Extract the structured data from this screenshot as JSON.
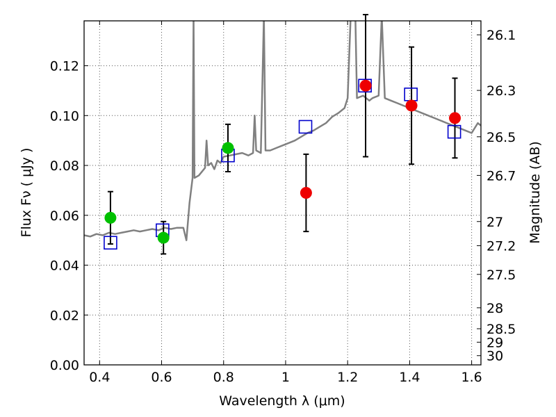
{
  "chart_data": {
    "type": "scatter",
    "title": "",
    "xlabel": "Wavelength  λ (μm)",
    "ylabel": "Flux  Fν  ( μJy )",
    "y2label": "Magnitude (AB)",
    "xlim": [
      0.35,
      1.63
    ],
    "ylim": [
      0.0,
      0.138
    ],
    "grid": true,
    "legend": "none",
    "x_ticks": [
      {
        "value": 0.4,
        "label": "0.4"
      },
      {
        "value": 0.6,
        "label": "0.6"
      },
      {
        "value": 0.8,
        "label": "0.8"
      },
      {
        "value": 1.0,
        "label": "1"
      },
      {
        "value": 1.2,
        "label": "1.2"
      },
      {
        "value": 1.4,
        "label": "1.4"
      },
      {
        "value": 1.6,
        "label": "1.6"
      }
    ],
    "y_ticks": [
      {
        "value": 0.0,
        "label": "0.00"
      },
      {
        "value": 0.02,
        "label": "0.02"
      },
      {
        "value": 0.04,
        "label": "0.04"
      },
      {
        "value": 0.06,
        "label": "0.06"
      },
      {
        "value": 0.08,
        "label": "0.08"
      },
      {
        "value": 0.1,
        "label": "0.10"
      },
      {
        "value": 0.12,
        "label": "0.12"
      }
    ],
    "y2_ticks": [
      {
        "flux": 0.1324,
        "label": "26.1"
      },
      {
        "flux": 0.1101,
        "label": "26.3"
      },
      {
        "flux": 0.0915,
        "label": "26.5"
      },
      {
        "flux": 0.076,
        "label": "26.7"
      },
      {
        "flux": 0.0575,
        "label": "27"
      },
      {
        "flux": 0.0478,
        "label": "27.2"
      },
      {
        "flux": 0.0363,
        "label": "27.5"
      },
      {
        "flux": 0.0229,
        "label": "28"
      },
      {
        "flux": 0.0145,
        "label": "28.5"
      },
      {
        "flux": 0.0091,
        "label": "29"
      },
      {
        "flux": 0.0037,
        "label": "30"
      }
    ],
    "colors": {
      "spectrum": "#808080",
      "model_photometry": "#0000cc",
      "observed_green": "#00c000",
      "observed_red": "#ee0000",
      "errorbar": "#000000",
      "grid": "#555555"
    },
    "spectrum": [
      [
        0.35,
        0.052
      ],
      [
        0.37,
        0.0515
      ],
      [
        0.39,
        0.0525
      ],
      [
        0.41,
        0.052
      ],
      [
        0.43,
        0.053
      ],
      [
        0.45,
        0.0525
      ],
      [
        0.47,
        0.053
      ],
      [
        0.49,
        0.0535
      ],
      [
        0.51,
        0.054
      ],
      [
        0.53,
        0.0535
      ],
      [
        0.55,
        0.054
      ],
      [
        0.57,
        0.0545
      ],
      [
        0.59,
        0.054
      ],
      [
        0.61,
        0.055
      ],
      [
        0.63,
        0.0545
      ],
      [
        0.65,
        0.055
      ],
      [
        0.67,
        0.055
      ],
      [
        0.68,
        0.05
      ],
      [
        0.69,
        0.065
      ],
      [
        0.7,
        0.075
      ],
      [
        0.703,
        0.14
      ],
      [
        0.706,
        0.075
      ],
      [
        0.72,
        0.076
      ],
      [
        0.74,
        0.079
      ],
      [
        0.745,
        0.09
      ],
      [
        0.75,
        0.08
      ],
      [
        0.76,
        0.081
      ],
      [
        0.77,
        0.0785
      ],
      [
        0.78,
        0.082
      ],
      [
        0.79,
        0.081
      ],
      [
        0.8,
        0.0835
      ],
      [
        0.82,
        0.084
      ],
      [
        0.84,
        0.0845
      ],
      [
        0.86,
        0.085
      ],
      [
        0.88,
        0.084
      ],
      [
        0.895,
        0.085
      ],
      [
        0.9,
        0.1
      ],
      [
        0.905,
        0.086
      ],
      [
        0.92,
        0.085
      ],
      [
        0.93,
        0.14
      ],
      [
        0.935,
        0.086
      ],
      [
        0.95,
        0.086
      ],
      [
        0.97,
        0.087
      ],
      [
        0.99,
        0.088
      ],
      [
        1.01,
        0.089
      ],
      [
        1.03,
        0.09
      ],
      [
        1.05,
        0.0915
      ],
      [
        1.07,
        0.093
      ],
      [
        1.09,
        0.094
      ],
      [
        1.11,
        0.0955
      ],
      [
        1.13,
        0.097
      ],
      [
        1.15,
        0.0995
      ],
      [
        1.17,
        0.101
      ],
      [
        1.19,
        0.103
      ],
      [
        1.2,
        0.107
      ],
      [
        1.21,
        0.14
      ],
      [
        1.225,
        0.14
      ],
      [
        1.23,
        0.107
      ],
      [
        1.25,
        0.108
      ],
      [
        1.27,
        0.106
      ],
      [
        1.28,
        0.107
      ],
      [
        1.3,
        0.108
      ],
      [
        1.31,
        0.14
      ],
      [
        1.32,
        0.107
      ],
      [
        1.34,
        0.106
      ],
      [
        1.36,
        0.105
      ],
      [
        1.38,
        0.104
      ],
      [
        1.4,
        0.103
      ],
      [
        1.42,
        0.102
      ],
      [
        1.44,
        0.101
      ],
      [
        1.46,
        0.1
      ],
      [
        1.48,
        0.099
      ],
      [
        1.5,
        0.098
      ],
      [
        1.52,
        0.097
      ],
      [
        1.54,
        0.096
      ],
      [
        1.56,
        0.095
      ],
      [
        1.58,
        0.094
      ],
      [
        1.6,
        0.093
      ],
      [
        1.62,
        0.097
      ],
      [
        1.63,
        0.096
      ]
    ],
    "model_photometry": [
      {
        "x": 0.435,
        "y": 0.049
      },
      {
        "x": 0.603,
        "y": 0.054
      },
      {
        "x": 0.814,
        "y": 0.084
      },
      {
        "x": 1.064,
        "y": 0.0955
      },
      {
        "x": 1.256,
        "y": 0.112
      },
      {
        "x": 1.404,
        "y": 0.1085
      },
      {
        "x": 1.544,
        "y": 0.0935
      }
    ],
    "observed_photometry": [
      {
        "x": 0.435,
        "y": 0.059,
        "err": 0.0105,
        "color": "green"
      },
      {
        "x": 0.606,
        "y": 0.051,
        "err": 0.0065,
        "color": "green"
      },
      {
        "x": 0.814,
        "y": 0.087,
        "err": 0.0095,
        "color": "green"
      },
      {
        "x": 1.066,
        "y": 0.069,
        "err": 0.0155,
        "color": "red"
      },
      {
        "x": 1.258,
        "y": 0.112,
        "err": 0.0285,
        "color": "red"
      },
      {
        "x": 1.406,
        "y": 0.104,
        "err": 0.0235,
        "color": "red"
      },
      {
        "x": 1.546,
        "y": 0.099,
        "err": 0.016,
        "color": "red"
      }
    ]
  }
}
